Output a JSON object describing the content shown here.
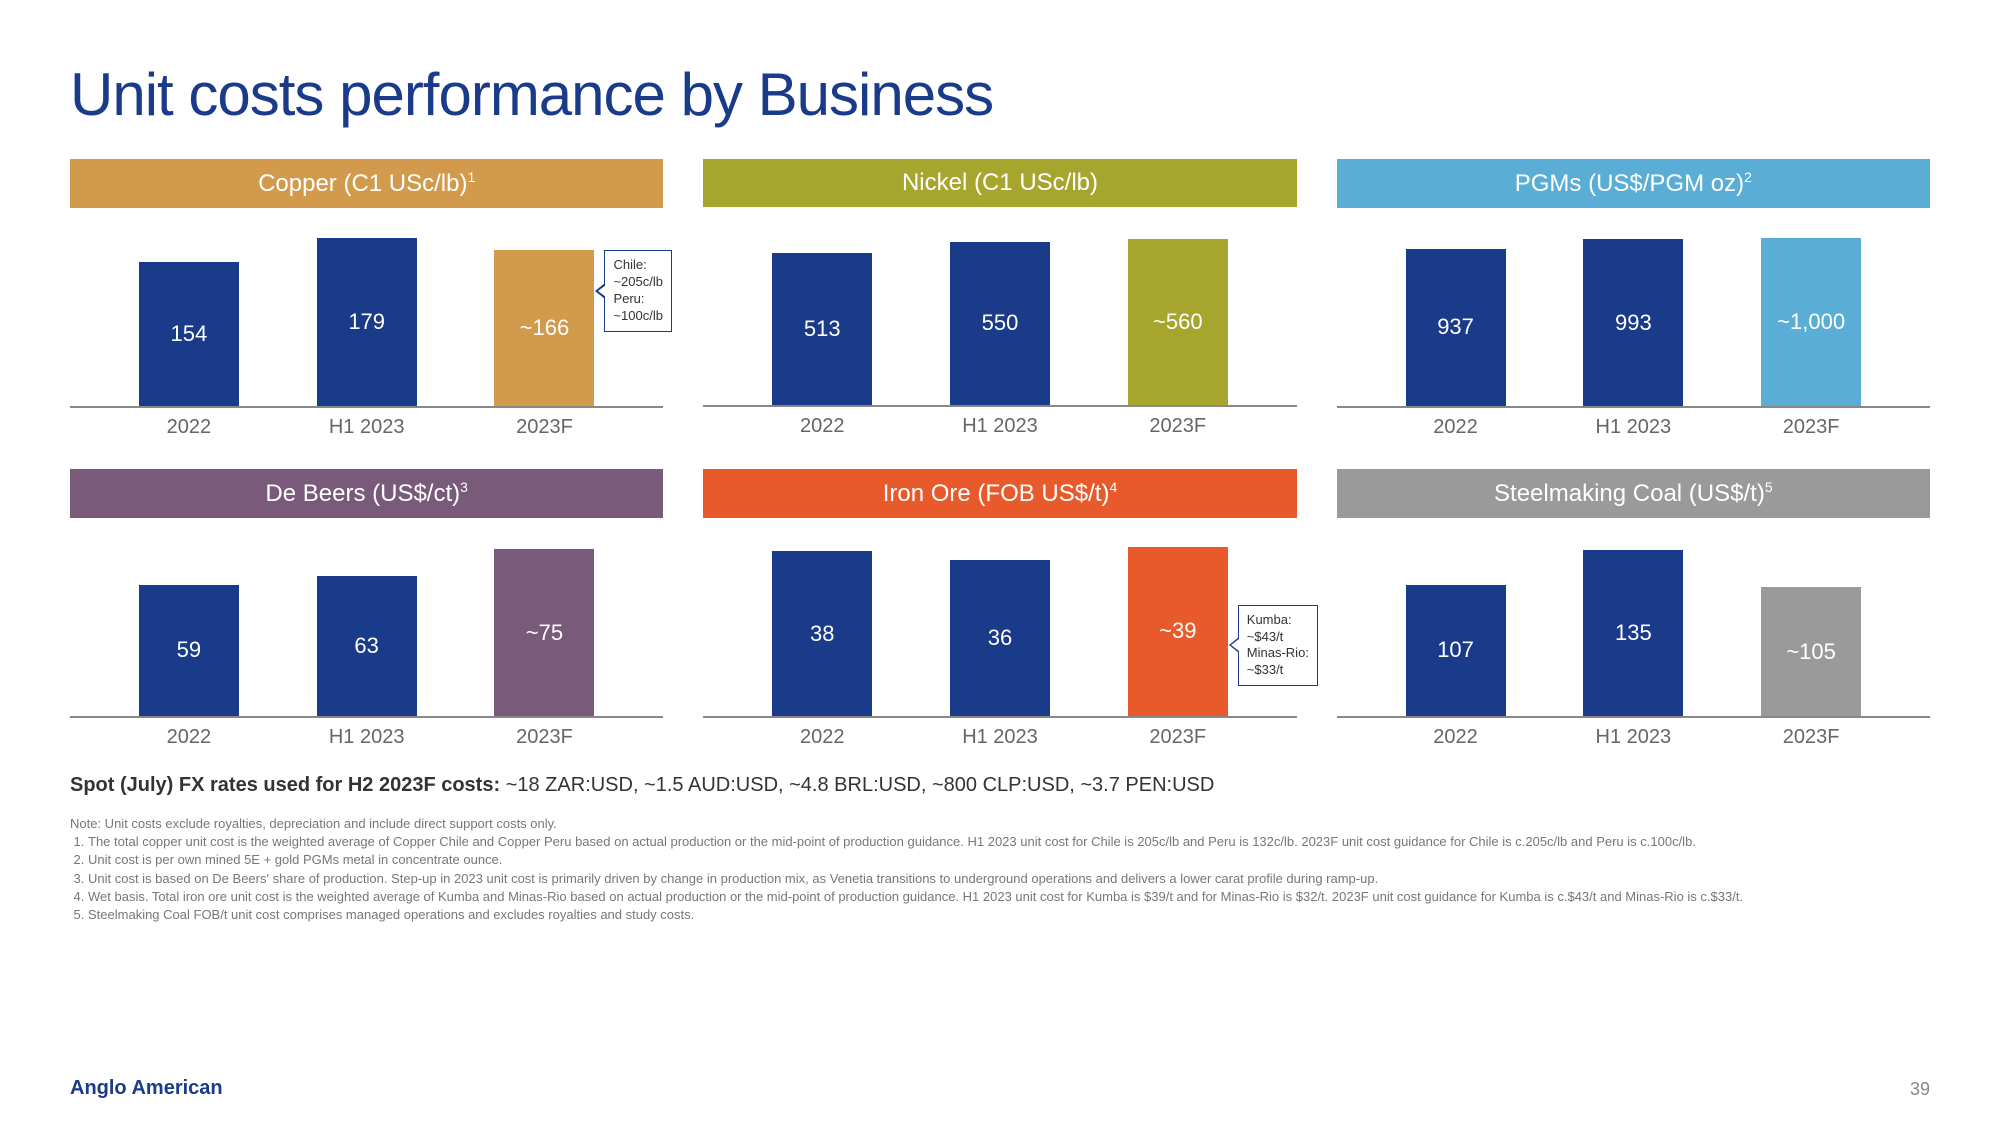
{
  "title": "Unit costs performance by Business",
  "colors": {
    "navy": "#1a3a8a",
    "text_grey": "#666666"
  },
  "x_labels": [
    "2022",
    "H1 2023",
    "2023F"
  ],
  "panels": [
    {
      "title": "Copper (C1 USc/lb)",
      "sup": "1",
      "header_color": "#d19a4c",
      "bars": [
        {
          "label": "154",
          "value": 154,
          "color": "#1a3a8a"
        },
        {
          "label": "179",
          "value": 179,
          "color": "#1a3a8a"
        },
        {
          "label": "~166",
          "value": 166,
          "color": "#d19a4c"
        }
      ],
      "ymax": 190,
      "callout": "Chile:\n~205c/lb\nPeru:\n~100c/lb",
      "callout_bar": 2,
      "callout_v": "top"
    },
    {
      "title": "Nickel (C1 USc/lb)",
      "sup": "",
      "header_color": "#a6a62f",
      "bars": [
        {
          "label": "513",
          "value": 513,
          "color": "#1a3a8a"
        },
        {
          "label": "550",
          "value": 550,
          "color": "#1a3a8a"
        },
        {
          "label": "~560",
          "value": 560,
          "color": "#a6a62f"
        }
      ],
      "ymax": 600
    },
    {
      "title": "PGMs (US$/PGM oz)",
      "sup": "2",
      "header_color": "#5aaed6",
      "bars": [
        {
          "label": "937",
          "value": 937,
          "color": "#1a3a8a"
        },
        {
          "label": "993",
          "value": 993,
          "color": "#1a3a8a"
        },
        {
          "label": "~1,000",
          "value": 1000,
          "color": "#5aaed6"
        }
      ],
      "ymax": 1060
    },
    {
      "title": "De Beers (US$/ct)",
      "sup": "3",
      "header_color": "#7a5a7a",
      "bars": [
        {
          "label": "59",
          "value": 59,
          "color": "#1a3a8a"
        },
        {
          "label": "63",
          "value": 63,
          "color": "#1a3a8a"
        },
        {
          "label": "~75",
          "value": 75,
          "color": "#7a5a7a"
        }
      ],
      "ymax": 80
    },
    {
      "title": "Iron Ore (FOB US$/t)",
      "sup": "4",
      "header_color": "#e85a2c",
      "bars": [
        {
          "label": "38",
          "value": 38,
          "color": "#1a3a8a"
        },
        {
          "label": "36",
          "value": 36,
          "color": "#1a3a8a"
        },
        {
          "label": "~39",
          "value": 39,
          "color": "#e85a2c"
        }
      ],
      "ymax": 41,
      "callout": "Kumba:\n~$43/t\nMinas-Rio:\n~$33/t",
      "callout_bar": 2,
      "callout_v": "mid"
    },
    {
      "title": "Steelmaking Coal (US$/t)",
      "sup": "5",
      "header_color": "#9a9a9a",
      "bars": [
        {
          "label": "107",
          "value": 107,
          "color": "#1a3a8a"
        },
        {
          "label": "135",
          "value": 135,
          "color": "#1a3a8a"
        },
        {
          "label": "~105",
          "value": 105,
          "color": "#9a9a9a"
        }
      ],
      "ymax": 145
    }
  ],
  "fx_line_bold": "Spot (July) FX rates used for H2 2023F costs:",
  "fx_line_rest": " ~18 ZAR:USD, ~1.5 AUD:USD, ~4.8 BRL:USD, ~800 CLP:USD, ~3.7 PEN:USD",
  "notes_intro": "Note: Unit costs exclude royalties, depreciation and include direct support costs only.",
  "notes": [
    "The total copper unit cost is the weighted average of Copper Chile and Copper Peru based on actual production or the mid-point of production guidance. H1 2023 unit cost for Chile is 205c/lb and Peru is 132c/lb. 2023F unit cost guidance for Chile is c.205c/lb and Peru is c.100c/lb.",
    "Unit cost is per own mined 5E + gold PGMs metal in concentrate ounce.",
    "Unit cost is based on De Beers' share of production. Step-up in 2023 unit cost is primarily driven by change in production mix, as Venetia transitions to underground operations and delivers a lower carat profile during ramp-up.",
    "Wet basis. Total iron ore unit cost is the weighted average of Kumba and Minas-Rio based on actual production or the mid-point of production guidance. H1 2023 unit cost for Kumba is $39/t and for Minas-Rio is $32/t. 2023F unit cost guidance for Kumba is c.$43/t and Minas-Rio is c.$33/t.",
    "Steelmaking Coal FOB/t unit cost comprises managed operations and excludes royalties and study costs."
  ],
  "brand": "Anglo American",
  "page_number": "39"
}
